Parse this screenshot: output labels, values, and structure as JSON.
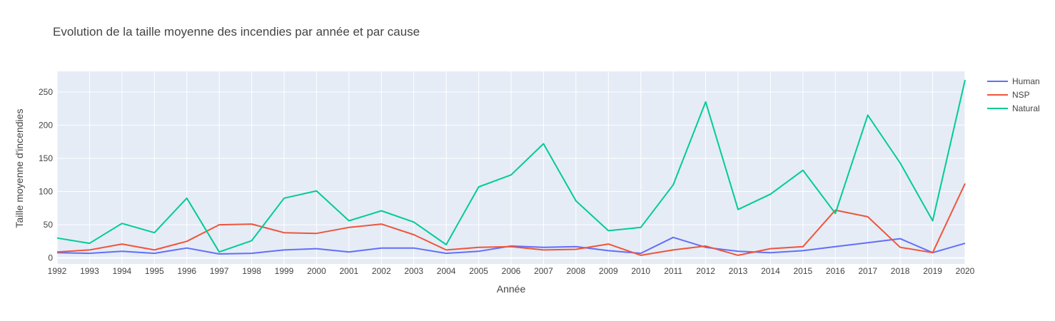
{
  "chart_data": {
    "type": "line",
    "title": "Evolution de la taille moyenne des incendies par année et par cause",
    "xlabel": "Année",
    "ylabel": "Taille moyenne d'incendies",
    "x": [
      1992,
      1993,
      1994,
      1995,
      1996,
      1997,
      1998,
      1999,
      2000,
      2001,
      2002,
      2003,
      2004,
      2005,
      2006,
      2007,
      2008,
      2009,
      2010,
      2011,
      2012,
      2013,
      2014,
      2015,
      2016,
      2017,
      2018,
      2019,
      2020
    ],
    "xlim": [
      1992,
      2020
    ],
    "ylim": [
      -9,
      281
    ],
    "yticks": [
      0,
      50,
      100,
      150,
      200,
      250
    ],
    "grid": true,
    "legend_position": "top-right",
    "colors": {
      "plot_bg": "#e5ecf6",
      "grid": "#ffffff",
      "text": "#444444"
    },
    "series": [
      {
        "name": "Human",
        "color": "#636efa",
        "values": [
          8,
          7,
          10,
          7,
          15,
          6,
          7,
          12,
          14,
          9,
          15,
          15,
          7,
          10,
          18,
          16,
          17,
          11,
          7,
          31,
          16,
          10,
          8,
          11,
          17,
          23,
          29,
          8,
          22
        ]
      },
      {
        "name": "NSP",
        "color": "#ef553b",
        "values": [
          9,
          12,
          21,
          12,
          25,
          50,
          51,
          38,
          37,
          46,
          51,
          35,
          12,
          16,
          17,
          12,
          13,
          21,
          4,
          12,
          18,
          4,
          14,
          17,
          72,
          62,
          16,
          8,
          112
        ]
      },
      {
        "name": "Natural",
        "color": "#00cc96",
        "values": [
          30,
          22,
          52,
          38,
          90,
          9,
          26,
          90,
          101,
          56,
          71,
          54,
          20,
          107,
          125,
          172,
          86,
          41,
          46,
          110,
          235,
          73,
          96,
          132,
          67,
          215,
          143,
          56,
          268
        ]
      }
    ]
  }
}
